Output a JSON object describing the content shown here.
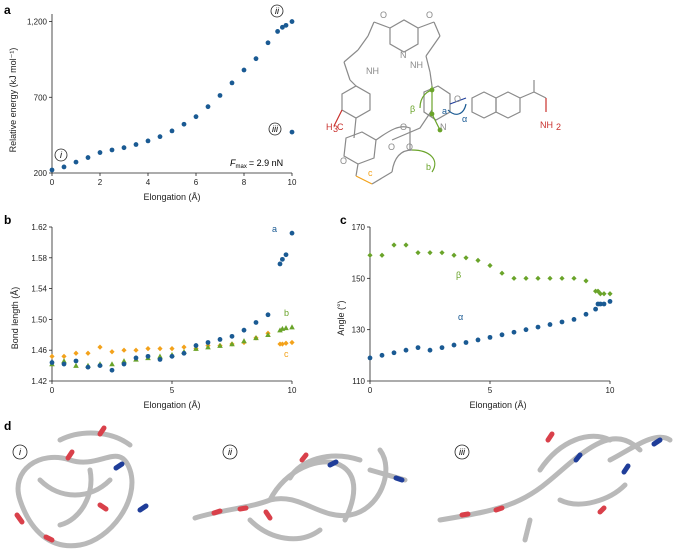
{
  "colors": {
    "blue": "#1a5a93",
    "green": "#6aa42a",
    "orange": "#f3a21b",
    "red": "#c9302c",
    "grey": "#8a8a8a",
    "dark_blue": "#1f3d99"
  },
  "panels": {
    "a": "a",
    "b": "b",
    "c": "c",
    "d": "d"
  },
  "panel_a": {
    "ylabel": "Relative energy (kJ mol⁻¹)",
    "xlabel": "Elongation (Å)",
    "fmax_label": "F",
    "fmax_sub": "max",
    "fmax_value": "= 2.9 nN",
    "callouts": [
      "i",
      "ii",
      "iii"
    ]
  },
  "panel_b": {
    "ylabel": "Bond length (Å)",
    "xlabel": "Elongation (Å)",
    "series_labels": [
      "a",
      "b",
      "c"
    ]
  },
  "panel_c": {
    "ylabel": "Angle (°)",
    "xlabel": "Elongation (Å)",
    "series_labels": [
      "β",
      "α"
    ]
  },
  "molecule": {
    "labels": [
      "NH",
      "NH",
      "β",
      "α",
      "a",
      "b",
      "c",
      "NH",
      "2",
      "H",
      "3",
      "C",
      "O",
      "O",
      "O",
      "O",
      "O",
      "O",
      "O",
      "N",
      "N"
    ]
  },
  "structures": [
    "i",
    "ii",
    "iii"
  ],
  "chart_data": [
    {
      "type": "scatter",
      "title": "",
      "xlabel": "Elongation (Å)",
      "ylabel": "Relative energy (kJ mol⁻¹)",
      "xlim": [
        0,
        10
      ],
      "ylim": [
        200,
        1250
      ],
      "xticks": [
        0,
        2,
        4,
        6,
        8,
        10
      ],
      "yticks": [
        200,
        700,
        1200
      ],
      "yticklabels": [
        "200",
        "700",
        "1,200"
      ],
      "series": [
        {
          "x": [
            0,
            0.5,
            1,
            1.5,
            2,
            2.5,
            3,
            3.5,
            4,
            4.5,
            5,
            5.5,
            6,
            6.5,
            7,
            7.5,
            8,
            8.5,
            9,
            9.4,
            9.6,
            9.75,
            10
          ],
          "y": [
            220,
            240,
            272,
            302,
            335,
            352,
            367,
            388,
            412,
            440,
            478,
            522,
            572,
            638,
            712,
            795,
            880,
            955,
            1060,
            1135,
            1162,
            1175,
            1200
          ]
        },
        {
          "x": [
            10
          ],
          "y": [
            470
          ]
        }
      ]
    },
    {
      "type": "scatter",
      "xlabel": "Elongation (Å)",
      "ylabel": "Bond length (Å)",
      "xlim": [
        0,
        10
      ],
      "ylim": [
        1.42,
        1.62
      ],
      "xticks": [
        0,
        5,
        10
      ],
      "yticks": [
        1.42,
        1.46,
        1.5,
        1.54,
        1.58,
        1.62
      ],
      "yticklabels": [
        "1.42",
        "1.46",
        "1.50",
        "1.54",
        "1.58",
        "1.62"
      ],
      "series": [
        {
          "name": "a",
          "x": [
            0,
            0.5,
            1,
            1.5,
            2,
            2.5,
            3,
            3.5,
            4,
            4.5,
            5,
            5.5,
            6,
            6.5,
            7,
            7.5,
            8,
            8.5,
            9,
            9.5,
            9.6,
            9.75,
            10
          ],
          "y": [
            1.444,
            1.442,
            1.446,
            1.438,
            1.44,
            1.434,
            1.442,
            1.45,
            1.452,
            1.448,
            1.452,
            1.456,
            1.466,
            1.47,
            1.474,
            1.478,
            1.486,
            1.496,
            1.506,
            1.572,
            1.578,
            1.584,
            1.612
          ]
        },
        {
          "name": "b",
          "x": [
            0,
            0.5,
            1,
            1.5,
            2,
            2.5,
            3,
            3.5,
            4,
            4.5,
            5,
            5.5,
            6,
            6.5,
            7,
            7.5,
            8,
            8.5,
            9,
            9.5,
            9.6,
            9.75,
            10
          ],
          "y": [
            1.442,
            1.446,
            1.44,
            1.44,
            1.442,
            1.442,
            1.446,
            1.448,
            1.45,
            1.452,
            1.454,
            1.458,
            1.462,
            1.464,
            1.466,
            1.468,
            1.472,
            1.476,
            1.48,
            1.486,
            1.488,
            1.489,
            1.49
          ]
        },
        {
          "name": "c",
          "x": [
            0,
            0.5,
            1,
            1.5,
            2,
            2.5,
            3,
            3.5,
            4,
            4.5,
            5,
            5.5,
            6,
            6.5,
            7,
            7.5,
            8,
            8.5,
            9,
            9.5,
            9.6,
            9.75,
            10
          ],
          "y": [
            1.452,
            1.452,
            1.456,
            1.456,
            1.464,
            1.458,
            1.46,
            1.46,
            1.462,
            1.462,
            1.462,
            1.464,
            1.462,
            1.466,
            1.466,
            1.468,
            1.47,
            1.476,
            1.482,
            1.468,
            1.468,
            1.469,
            1.47
          ]
        }
      ]
    },
    {
      "type": "scatter",
      "xlabel": "Elongation (Å)",
      "ylabel": "Angle (°)",
      "xlim": [
        0,
        10
      ],
      "ylim": [
        110,
        170
      ],
      "xticks": [
        0,
        5,
        10
      ],
      "yticks": [
        110,
        130,
        150,
        170
      ],
      "yticklabels": [
        "110",
        "130",
        "150",
        "170"
      ],
      "series": [
        {
          "name": "β",
          "x": [
            0,
            0.5,
            1,
            1.5,
            2,
            2.5,
            3,
            3.5,
            4,
            4.5,
            5,
            5.5,
            6,
            6.5,
            7,
            7.5,
            8,
            8.5,
            9,
            9.4,
            9.5,
            9.6,
            9.75,
            10
          ],
          "y": [
            159,
            159,
            163,
            163,
            160,
            160,
            160,
            159,
            158,
            157,
            155,
            152,
            150,
            150,
            150,
            150,
            150,
            150,
            149,
            145,
            145,
            144,
            144,
            144
          ]
        },
        {
          "name": "α",
          "x": [
            0,
            0.5,
            1,
            1.5,
            2,
            2.5,
            3,
            3.5,
            4,
            4.5,
            5,
            5.5,
            6,
            6.5,
            7,
            7.5,
            8,
            8.5,
            9,
            9.4,
            9.5,
            9.6,
            9.75,
            10
          ],
          "y": [
            119,
            120,
            121,
            122,
            123,
            122,
            123,
            124,
            125,
            126,
            127,
            128,
            129,
            130,
            131,
            132,
            133,
            134,
            136,
            138,
            140,
            140,
            140,
            141
          ]
        }
      ]
    }
  ]
}
